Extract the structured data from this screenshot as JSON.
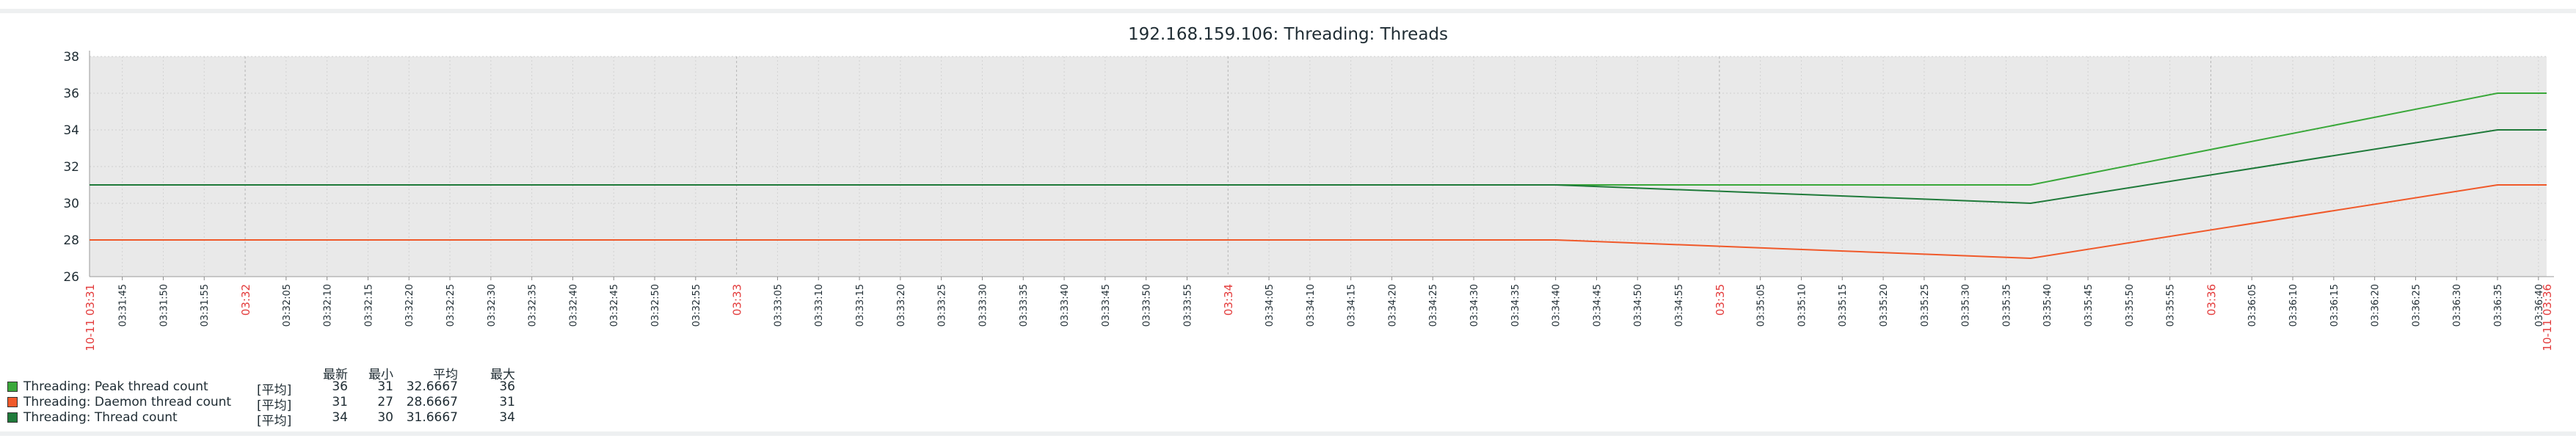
{
  "chart_data": {
    "type": "line",
    "title": "192.168.159.106: Threading: Threads",
    "ylim": [
      26,
      38
    ],
    "yticks": [
      26,
      28,
      30,
      32,
      34,
      36,
      38
    ],
    "xrange": [
      "03:31:41",
      "03:36:41"
    ],
    "x_tick_labels": [
      "03:31:45",
      "03:31:50",
      "03:31:55",
      "03:32:05",
      "03:32:10",
      "03:32:15",
      "03:32:20",
      "03:32:25",
      "03:32:30",
      "03:32:35",
      "03:32:40",
      "03:32:45",
      "03:32:50",
      "03:32:55",
      "03:33:05",
      "03:33:10",
      "03:33:15",
      "03:33:20",
      "03:33:25",
      "03:33:30",
      "03:33:35",
      "03:33:40",
      "03:33:45",
      "03:33:50",
      "03:33:55",
      "03:34:05",
      "03:34:10",
      "03:34:15",
      "03:34:20",
      "03:34:25",
      "03:34:30",
      "03:34:35",
      "03:34:40",
      "03:34:45",
      "03:34:50",
      "03:34:55",
      "03:35:05",
      "03:35:10",
      "03:35:15",
      "03:35:20",
      "03:35:25",
      "03:35:30",
      "03:35:35",
      "03:35:40",
      "03:35:45",
      "03:35:50",
      "03:35:55",
      "03:36:05",
      "03:36:10",
      "03:36:15",
      "03:36:20",
      "03:36:25",
      "03:36:30",
      "03:36:35",
      "03:36:40"
    ],
    "x_major_labels": [
      "03:32",
      "03:33",
      "03:34",
      "03:35",
      "03:36"
    ],
    "x_edge_labels": [
      "10-11 03:31",
      "10-11 03:36"
    ],
    "grid": true,
    "series": [
      {
        "name": "Threading: Peak thread count",
        "color": "#3aa83a",
        "x": [
          "03:31:41",
          "03:34:40",
          "03:35:38",
          "03:36:35",
          "03:36:41"
        ],
        "values": [
          31,
          31,
          31,
          36,
          36
        ]
      },
      {
        "name": "Threading: Daemon thread count",
        "color": "#f0592a",
        "x": [
          "03:31:41",
          "03:34:40",
          "03:35:38",
          "03:36:35",
          "03:36:41"
        ],
        "values": [
          28,
          28,
          27,
          31,
          31
        ]
      },
      {
        "name": "Threading: Thread count",
        "color": "#1f7a3a",
        "x": [
          "03:31:41",
          "03:34:40",
          "03:35:38",
          "03:36:35",
          "03:36:41"
        ],
        "values": [
          31,
          31,
          30,
          34,
          34
        ]
      }
    ]
  },
  "legend": {
    "headers": [
      "最新",
      "最小",
      "平均",
      "最大"
    ],
    "rows": [
      {
        "name": "Threading: Peak thread count",
        "func": "[平均]",
        "last": "36",
        "min": "31",
        "avg": "32.6667",
        "max": "36",
        "color": "#3aa83a"
      },
      {
        "name": "Threading: Daemon thread count",
        "func": "[平均]",
        "last": "31",
        "min": "27",
        "avg": "28.6667",
        "max": "31",
        "color": "#f0592a"
      },
      {
        "name": "Threading: Thread count",
        "func": "[平均]",
        "last": "34",
        "min": "30",
        "avg": "31.6667",
        "max": "34",
        "color": "#1f7a3a"
      }
    ]
  }
}
